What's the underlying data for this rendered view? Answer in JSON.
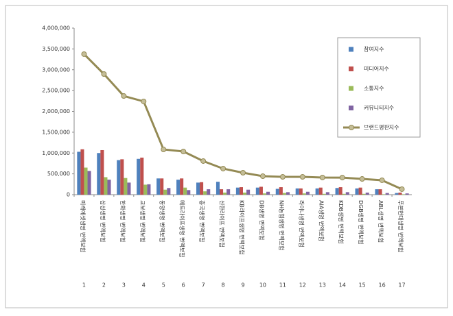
{
  "chart_data": {
    "type": "bar",
    "categories": [
      "미래에셋생명 변액보험",
      "삼성생명 변액보험",
      "한화생명 변액보험",
      "교보생명 변액보험",
      "동양생명 변액보험",
      "메트라이프생명 변액보험",
      "흥국생명 변액보험",
      "신한라이프 변액보험",
      "KB라이프생명 변액보험",
      "DB생명 변액보험",
      "NH농협생명 변액보험",
      "라이나생명 변액보험",
      "AIA생명 변액보험",
      "KDB생명 변액보험",
      "DGB생명 변액보험",
      "ABL생명 변액보험",
      "푸본현대생명 변액보험"
    ],
    "ranks": [
      1,
      2,
      3,
      4,
      5,
      6,
      7,
      8,
      9,
      10,
      11,
      12,
      13,
      14,
      15,
      16,
      17
    ],
    "series": [
      {
        "name": "참여지수",
        "color": "#4f81bd",
        "values": [
          1030000,
          1000000,
          830000,
          860000,
          390000,
          360000,
          290000,
          310000,
          170000,
          170000,
          140000,
          150000,
          150000,
          160000,
          150000,
          130000,
          40000
        ]
      },
      {
        "name": "미디어지수",
        "color": "#c0504d",
        "values": [
          1090000,
          1070000,
          850000,
          890000,
          390000,
          390000,
          300000,
          130000,
          180000,
          190000,
          180000,
          150000,
          170000,
          180000,
          170000,
          130000,
          50000
        ]
      },
      {
        "name": "소통지수",
        "color": "#9bbb59",
        "values": [
          650000,
          420000,
          400000,
          240000,
          120000,
          170000,
          80000,
          50000,
          50000,
          30000,
          40000,
          30000,
          20000,
          20000,
          20000,
          10000,
          10000
        ]
      },
      {
        "name": "커뮤니티지수",
        "color": "#8064a2",
        "values": [
          570000,
          360000,
          290000,
          250000,
          160000,
          110000,
          130000,
          130000,
          120000,
          70000,
          60000,
          70000,
          60000,
          60000,
          50000,
          40000,
          30000
        ]
      },
      {
        "name": "브랜드평판지수",
        "color": "#948a54",
        "type": "line",
        "values": [
          3375000,
          2897000,
          2370000,
          2239000,
          1086000,
          1037000,
          807000,
          626000,
          527000,
          444000,
          428000,
          428000,
          412000,
          410000,
          378000,
          346000,
          132000
        ]
      }
    ],
    "ylim": [
      0,
      4000000
    ],
    "yticks": [
      0,
      {
        "value": 500000,
        "label": "500,000"
      },
      {
        "value": 1000000,
        "label": "1,000,000"
      },
      {
        "value": 1500000,
        "label": "1,500,000"
      },
      {
        "value": 2000000,
        "label": "2,000,000"
      },
      {
        "value": 2500000,
        "label": "2,500,000"
      },
      {
        "value": 3000000,
        "label": "3,000,000"
      },
      {
        "value": 3500000,
        "label": "3,500,000"
      },
      {
        "value": 4000000,
        "label": "4,000,000"
      }
    ],
    "legend": "upper right"
  }
}
